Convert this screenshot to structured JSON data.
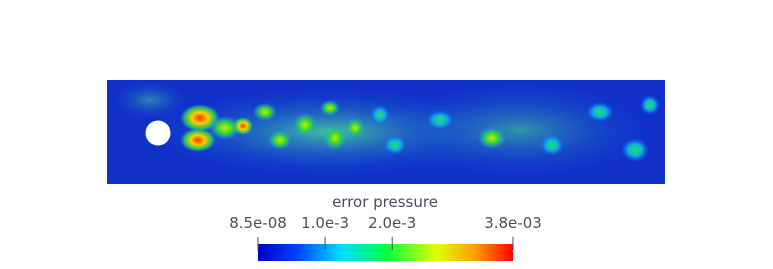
{
  "colorbar": {
    "title": "error pressure",
    "range": [
      8.5e-08,
      0.0038
    ],
    "ticks": [
      {
        "value": 8.5e-08,
        "label": "8.5e-08"
      },
      {
        "value": 0.001,
        "label": "1.0e-3"
      },
      {
        "value": 0.002,
        "label": "2.0e-3"
      },
      {
        "value": 0.0038,
        "label": "3.8e-03"
      }
    ]
  }
}
